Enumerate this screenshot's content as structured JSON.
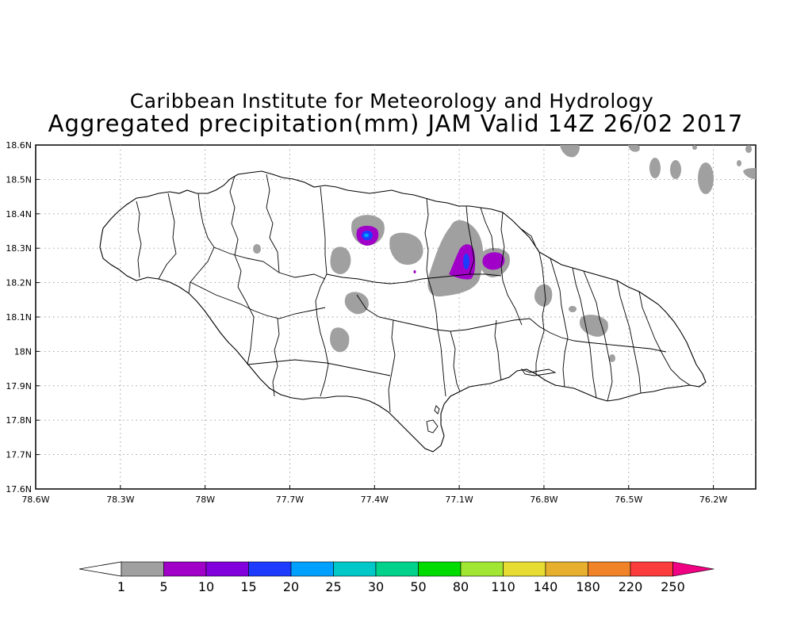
{
  "title": {
    "line1": "Caribbean Institute for Meteorology and Hydrology",
    "line2": "Aggregated precipitation(mm) JAM Valid 14Z 26/02 2017"
  },
  "map": {
    "lat_labels": [
      "18.6N",
      "18.5N",
      "18.4N",
      "18.3N",
      "18.2N",
      "18.1N",
      "18N",
      "17.9N",
      "17.8N",
      "17.7N",
      "17.6N"
    ],
    "lon_labels": [
      "78.6W",
      "78.3W",
      "78W",
      "77.7W",
      "77.4W",
      "77.1W",
      "76.8W",
      "76.5W",
      "76.2W"
    ],
    "lat_range": [
      17.6,
      18.6
    ],
    "lon_range": [
      -78.6,
      -76.05
    ],
    "grid": true
  },
  "colorbar": {
    "levels": [
      "1",
      "5",
      "10",
      "15",
      "20",
      "25",
      "30",
      "50",
      "80",
      "110",
      "140",
      "180",
      "220",
      "250"
    ],
    "colors": [
      "#a0a0a0",
      "#a000c8",
      "#8200dc",
      "#1e3cff",
      "#00a0ff",
      "#00c8c8",
      "#00d28c",
      "#00dc00",
      "#a0e632",
      "#e6dc32",
      "#e6af2d",
      "#f08228",
      "#fa3c3c",
      "#f00082"
    ],
    "low_end_color": "#ffffff"
  },
  "icons": {
    "grey_shading": "precip-1-5mm",
    "purple_shading": "precip-5-10mm",
    "blue_shading": "precip-15-20mm"
  }
}
